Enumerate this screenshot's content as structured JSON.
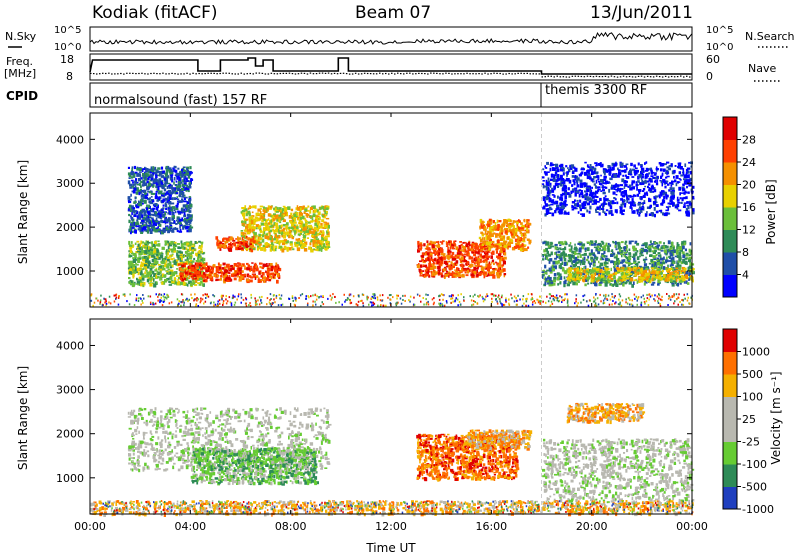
{
  "header": {
    "radar": "Kodiak (fitACF)",
    "beam": "Beam 07",
    "date": "13/Jun/2011"
  },
  "housekeeping": {
    "nsky_label": "N.Sky",
    "nsearch_label": "N.Search",
    "freq_label_1": "Freq.",
    "freq_label_2": "[MHz]",
    "nave_label": "Nave",
    "cpid_label": "CPID",
    "nsky_ticks": [
      "10^5",
      "10^0"
    ],
    "nsearch_ticks": [
      "10^5",
      "10^0"
    ],
    "freq_ticks": [
      "18",
      "8"
    ],
    "nave_ticks": [
      "60",
      "0"
    ],
    "cpid_segments": [
      {
        "label": "normalsound (fast) 157 RF",
        "start_hour": 0,
        "end_hour": 18
      },
      {
        "label": "themis 3300 RF",
        "start_hour": 18,
        "end_hour": 24
      }
    ]
  },
  "chart_data": [
    {
      "type": "heatmap",
      "name": "power-panel",
      "xlabel": "",
      "ylabel": "Slant Range [km]",
      "xlim": [
        0,
        24
      ],
      "ylim": [
        180,
        4600
      ],
      "yticks": [
        "1000",
        "2000",
        "3000",
        "4000"
      ],
      "colorbar_label": "Power [dB]",
      "colorbar_ticks": [
        "4",
        "8",
        "12",
        "16",
        "20",
        "24",
        "28"
      ],
      "colors": [
        "#0000ff",
        "#1f4ea8",
        "#2e8b57",
        "#6bbf3a",
        "#e8d000",
        "#f59000",
        "#ff4000",
        "#e00000"
      ],
      "echo_regions": [
        {
          "t0": 1.5,
          "t1": 4.0,
          "r0": 1900,
          "r1": 3400,
          "level": 1
        },
        {
          "t0": 1.5,
          "t1": 4.5,
          "r0": 700,
          "r1": 1700,
          "level": 3
        },
        {
          "t0": 3.5,
          "t1": 7.5,
          "r0": 800,
          "r1": 1200,
          "level": 6
        },
        {
          "t0": 6.0,
          "t1": 9.5,
          "r0": 1500,
          "r1": 2500,
          "level": 4
        },
        {
          "t0": 5.0,
          "t1": 6.5,
          "r0": 1500,
          "r1": 1800,
          "level": 6
        },
        {
          "t0": 13.0,
          "t1": 16.5,
          "r0": 900,
          "r1": 1700,
          "level": 6
        },
        {
          "t0": 15.5,
          "t1": 17.5,
          "r0": 1500,
          "r1": 2200,
          "level": 5
        },
        {
          "t0": 18.0,
          "t1": 24.0,
          "r0": 700,
          "r1": 1700,
          "level": 2
        },
        {
          "t0": 19.0,
          "t1": 24.0,
          "r0": 800,
          "r1": 1100,
          "level": 4
        },
        {
          "t0": 18.0,
          "t1": 24.0,
          "r0": 2300,
          "r1": 3500,
          "level": 0
        }
      ]
    },
    {
      "type": "heatmap",
      "name": "velocity-panel",
      "xlabel": "Time UT",
      "ylabel": "Slant Range [km]",
      "xlim": [
        0,
        24
      ],
      "ylim": [
        180,
        4600
      ],
      "xticks": [
        "00:00",
        "04:00",
        "08:00",
        "12:00",
        "16:00",
        "20:00",
        "00:00"
      ],
      "yticks": [
        "1000",
        "2000",
        "3000",
        "4000"
      ],
      "colorbar_label": "Velocity [m s⁻¹]",
      "colorbar_ticks": [
        "1000",
        "500",
        "100",
        "25",
        "-25",
        "-100",
        "-500",
        "-1000"
      ],
      "colors": [
        "#1f3fbf",
        "#2e8b57",
        "#66cc33",
        "#b8b8b0",
        "#b8b8b0",
        "#f5b000",
        "#ff7000",
        "#e00000"
      ],
      "echo_regions": [
        {
          "t0": 1.5,
          "t1": 9.5,
          "r0": 1200,
          "r1": 2600,
          "level": 3
        },
        {
          "t0": 4.0,
          "t1": 9.0,
          "r0": 900,
          "r1": 1700,
          "level": 2
        },
        {
          "t0": 13.0,
          "t1": 17.0,
          "r0": 1000,
          "r1": 2000,
          "level": 6
        },
        {
          "t0": 15.0,
          "t1": 17.5,
          "r0": 1700,
          "r1": 2100,
          "level": 5
        },
        {
          "t0": 18.0,
          "t1": 24.0,
          "r0": 500,
          "r1": 1900,
          "level": 3
        },
        {
          "t0": 19.0,
          "t1": 22.0,
          "r0": 2300,
          "r1": 2700,
          "level": 5
        },
        {
          "t0": 0.0,
          "t1": 24.0,
          "r0": 200,
          "r1": 500,
          "level": 5
        }
      ]
    }
  ]
}
